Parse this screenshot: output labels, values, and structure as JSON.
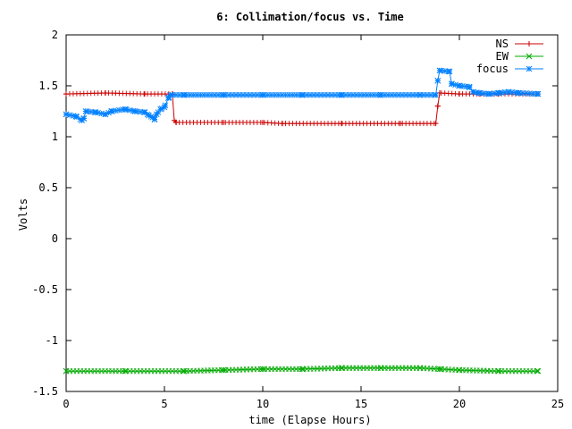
{
  "chart_data": {
    "type": "line",
    "title": "6: Collimation/focus vs. Time",
    "xlabel": "time (Elapse Hours)",
    "ylabel": "Volts",
    "xlim": [
      0,
      25
    ],
    "ylim": [
      -1.5,
      2
    ],
    "xticks": [
      0,
      5,
      10,
      15,
      20,
      25
    ],
    "yticks": [
      -1.5,
      -1,
      -0.5,
      0,
      0.5,
      1,
      1.5,
      2
    ],
    "xtick_labels": [
      "0",
      "5",
      "10",
      "15",
      "20",
      "25"
    ],
    "ytick_labels": [
      "-1.5",
      "-1",
      "-0.5",
      "0",
      "0.5",
      "1",
      "1.5",
      "2"
    ],
    "grid": false,
    "legend_position": "top-right",
    "series": [
      {
        "name": "NS",
        "color": "#cc0000",
        "marker": "plus",
        "points": [
          [
            0,
            1.42
          ],
          [
            2,
            1.43
          ],
          [
            4,
            1.42
          ],
          [
            5.4,
            1.42
          ],
          [
            5.5,
            1.16
          ],
          [
            5.6,
            1.14
          ],
          [
            8,
            1.14
          ],
          [
            10,
            1.14
          ],
          [
            11,
            1.13
          ],
          [
            14,
            1.13
          ],
          [
            17,
            1.13
          ],
          [
            18.8,
            1.13
          ],
          [
            18.9,
            1.3
          ],
          [
            19,
            1.43
          ],
          [
            20,
            1.42
          ],
          [
            21,
            1.42
          ],
          [
            22,
            1.42
          ],
          [
            24,
            1.42
          ]
        ]
      },
      {
        "name": "EW",
        "color": "#00aa00",
        "marker": "x",
        "points": [
          [
            0,
            -1.3
          ],
          [
            3,
            -1.3
          ],
          [
            6,
            -1.3
          ],
          [
            8,
            -1.29
          ],
          [
            10,
            -1.28
          ],
          [
            12,
            -1.28
          ],
          [
            14,
            -1.27
          ],
          [
            16,
            -1.27
          ],
          [
            18,
            -1.27
          ],
          [
            19,
            -1.28
          ],
          [
            20,
            -1.29
          ],
          [
            22,
            -1.3
          ],
          [
            24,
            -1.3
          ]
        ]
      },
      {
        "name": "focus",
        "color": "#0080ff",
        "marker": "star",
        "points": [
          [
            0,
            1.22
          ],
          [
            0.5,
            1.2
          ],
          [
            0.8,
            1.16
          ],
          [
            0.9,
            1.18
          ],
          [
            1,
            1.25
          ],
          [
            1.5,
            1.24
          ],
          [
            2,
            1.22
          ],
          [
            2.3,
            1.25
          ],
          [
            3,
            1.27
          ],
          [
            3.5,
            1.25
          ],
          [
            4,
            1.24
          ],
          [
            4.2,
            1.21
          ],
          [
            4.4,
            1.19
          ],
          [
            4.5,
            1.17
          ],
          [
            4.6,
            1.22
          ],
          [
            4.8,
            1.27
          ],
          [
            5,
            1.29
          ],
          [
            5.2,
            1.38
          ],
          [
            5.3,
            1.41
          ],
          [
            6,
            1.41
          ],
          [
            8,
            1.41
          ],
          [
            10,
            1.41
          ],
          [
            12,
            1.41
          ],
          [
            14,
            1.41
          ],
          [
            16,
            1.41
          ],
          [
            18,
            1.41
          ],
          [
            18.8,
            1.41
          ],
          [
            18.9,
            1.55
          ],
          [
            19,
            1.65
          ],
          [
            19.5,
            1.64
          ],
          [
            19.6,
            1.52
          ],
          [
            20,
            1.5
          ],
          [
            20.5,
            1.49
          ],
          [
            20.7,
            1.44
          ],
          [
            21,
            1.43
          ],
          [
            21.5,
            1.42
          ],
          [
            22,
            1.43
          ],
          [
            22.5,
            1.44
          ],
          [
            23,
            1.43
          ],
          [
            24,
            1.42
          ]
        ]
      }
    ]
  }
}
